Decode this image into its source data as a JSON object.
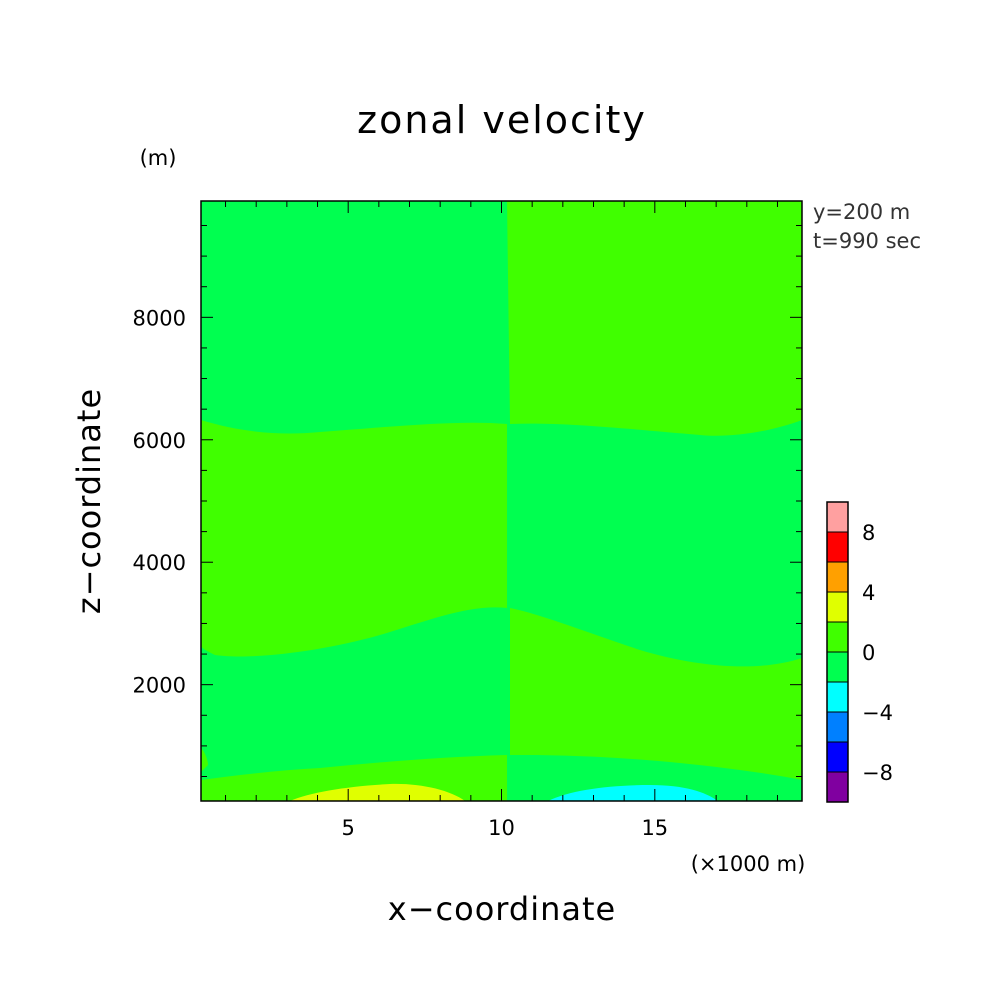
{
  "chart_data": {
    "type": "heatmap",
    "title": "zonal velocity",
    "xlabel": "x−coordinate",
    "ylabel": "z−coordinate",
    "x_unit": "(×1000 m)",
    "y_unit": "(m)",
    "annotations": [
      "y=200 m",
      "t=990 sec"
    ],
    "xlim": [
      0.2,
      19.8
    ],
    "ylim": [
      100,
      9900
    ],
    "x_ticks": [
      5,
      10,
      15
    ],
    "x_tick_labels": [
      "5",
      "10",
      "15"
    ],
    "y_ticks": [
      2000,
      4000,
      6000,
      8000
    ],
    "y_tick_labels": [
      "2000",
      "4000",
      "6000",
      "8000"
    ],
    "colorbar": {
      "levels": [
        -10,
        -8,
        -6,
        -4,
        -2,
        0,
        2,
        4,
        6,
        8,
        10
      ],
      "tick_labels": [
        "8",
        "4",
        "0",
        "−4",
        "−8"
      ],
      "tick_values": [
        8,
        4,
        0,
        -4,
        -8
      ],
      "colors": [
        "#8000a0",
        "#0000ff",
        "#0080ff",
        "#00ffff",
        "#00ff50",
        "#40ff00",
        "#e0ff00",
        "#ffa000",
        "#ff0000",
        "#ffa0a0"
      ]
    },
    "regions": [
      {
        "name": "0 to 2 (upper left)",
        "level": [
          0,
          2
        ],
        "color": "#40ff00"
      },
      {
        "name": "-2 to 0",
        "level": [
          -2,
          0
        ],
        "color": "#00ff50"
      },
      {
        "name": "2 to 4 (surface, left)",
        "level": [
          2,
          4
        ],
        "color": "#e0ff00"
      },
      {
        "name": "-4 to -2 (surface, right)",
        "level": [
          -4,
          -2
        ],
        "color": "#00ffff"
      }
    ]
  }
}
